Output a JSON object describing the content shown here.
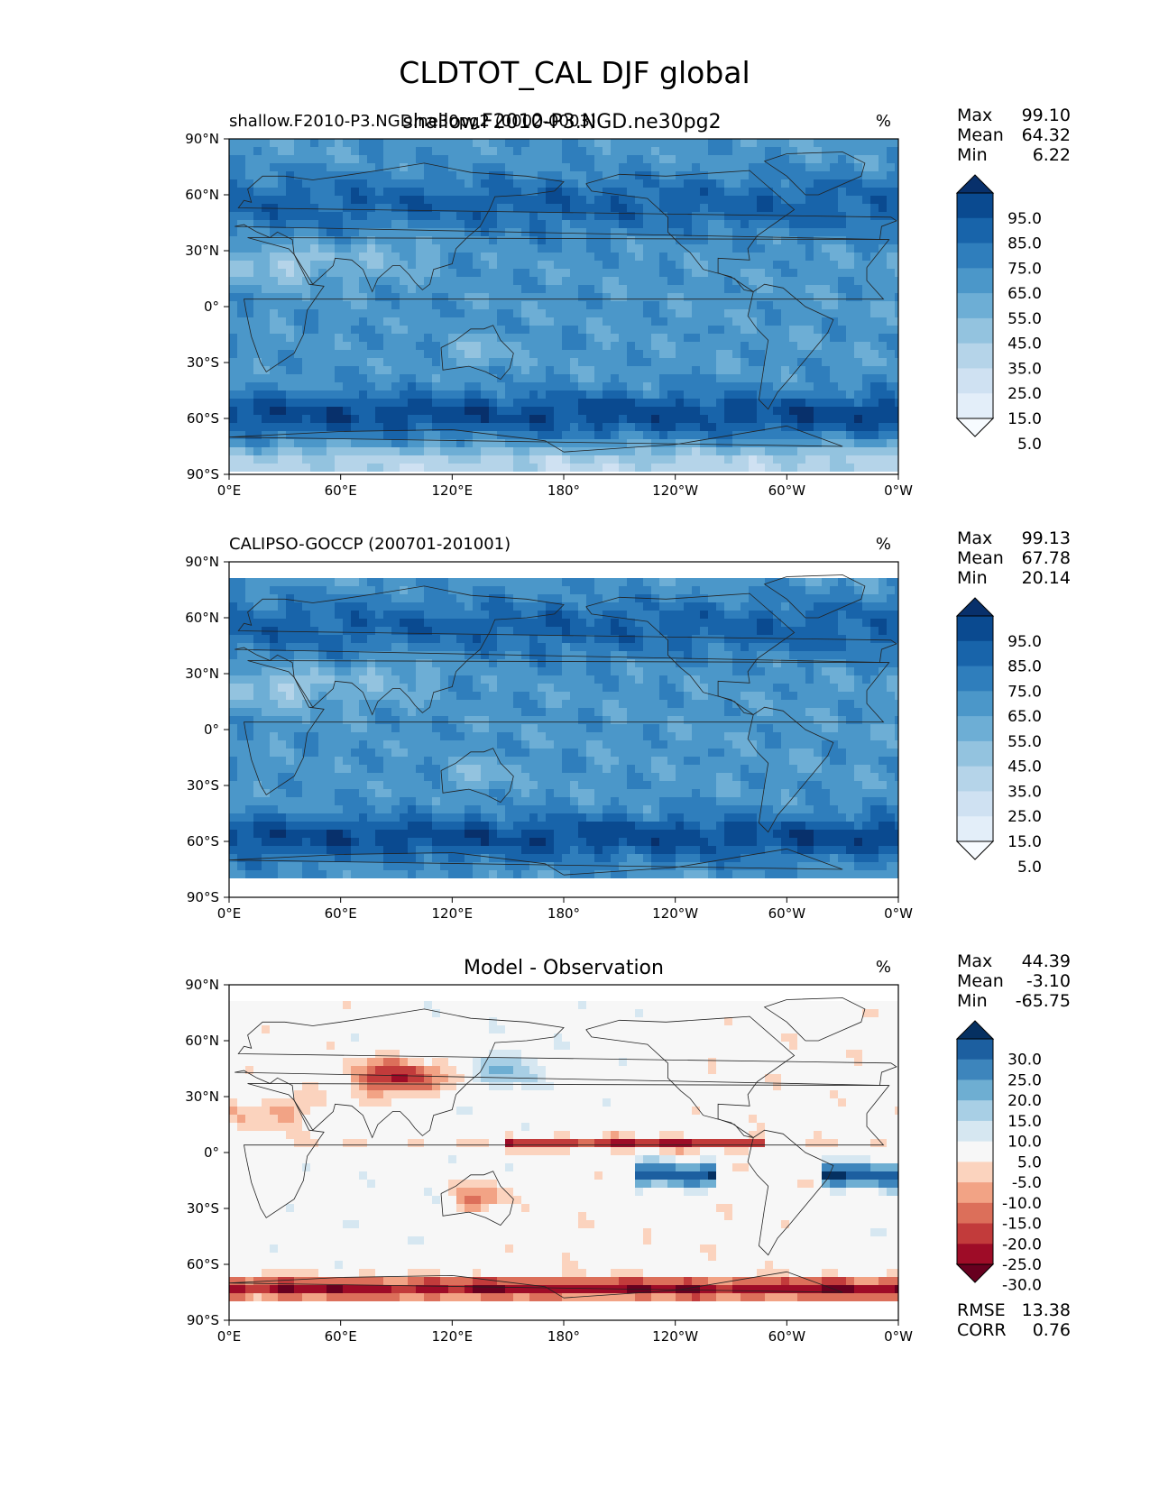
{
  "figure": {
    "title": "CLDTOT_CAL DJF global",
    "overlay_title": "shallow.F2010-P3.NGD.ne30pg2"
  },
  "panels": [
    {
      "id": "test",
      "left_title": "shallow.F2010-P3.NGD.ne30pg2 (0002-0003)",
      "center_title": "",
      "units": "%",
      "stats": [
        {
          "label": "Max",
          "value": "99.10"
        },
        {
          "label": "Mean",
          "value": "64.32"
        },
        {
          "label": "Min",
          "value": "6.22"
        }
      ],
      "colorbar_ticks": [
        "95.0",
        "85.0",
        "75.0",
        "65.0",
        "55.0",
        "45.0",
        "35.0",
        "25.0",
        "15.0",
        "5.0"
      ],
      "colorbar_colors": [
        "#f7fbff",
        "#e3eef9",
        "#cfe1f2",
        "#b5d4e9",
        "#93c3df",
        "#6daed5",
        "#4b97c9",
        "#2f7ebc",
        "#1864aa",
        "#0a4a90",
        "#08306b"
      ],
      "extra_stats": []
    },
    {
      "id": "reference",
      "left_title": "CALIPSO-GOCCP (200701-201001)",
      "center_title": "",
      "units": "%",
      "stats": [
        {
          "label": "Max",
          "value": "99.13"
        },
        {
          "label": "Mean",
          "value": "67.78"
        },
        {
          "label": "Min",
          "value": "20.14"
        }
      ],
      "colorbar_ticks": [
        "95.0",
        "85.0",
        "75.0",
        "65.0",
        "55.0",
        "45.0",
        "35.0",
        "25.0",
        "15.0",
        "5.0"
      ],
      "colorbar_colors": [
        "#f7fbff",
        "#e3eef9",
        "#cfe1f2",
        "#b5d4e9",
        "#93c3df",
        "#6daed5",
        "#4b97c9",
        "#2f7ebc",
        "#1864aa",
        "#0a4a90",
        "#08306b"
      ],
      "extra_stats": []
    },
    {
      "id": "difference",
      "left_title": "",
      "center_title": "Model - Observation",
      "units": "%",
      "stats": [
        {
          "label": "Max",
          "value": "44.39"
        },
        {
          "label": "Mean",
          "value": "-3.10"
        },
        {
          "label": "Min",
          "value": "-65.75"
        }
      ],
      "colorbar_ticks": [
        "30.0",
        "25.0",
        "20.0",
        "15.0",
        "10.0",
        "5.0",
        "-5.0",
        "-10.0",
        "-15.0",
        "-20.0",
        "-25.0",
        "-30.0"
      ],
      "colorbar_colors": [
        "#67001f",
        "#9e0c27",
        "#c23b3b",
        "#dc6f5a",
        "#f2a385",
        "#fbd3be",
        "#f7f7f7",
        "#d6e7f1",
        "#a8cfe5",
        "#6eaed2",
        "#3d85bc",
        "#1c5fa0",
        "#053061"
      ],
      "extra_stats": [
        {
          "label": "RMSE",
          "value": "13.38"
        },
        {
          "label": "CORR",
          "value": "0.76"
        }
      ]
    }
  ],
  "axes": {
    "lat_ticks": [
      "90°N",
      "60°N",
      "30°N",
      "0°",
      "30°S",
      "60°S",
      "90°S"
    ],
    "lon_ticks": [
      "0°E",
      "60°E",
      "120°E",
      "180°",
      "120°W",
      "60°W",
      "0°W"
    ]
  }
}
